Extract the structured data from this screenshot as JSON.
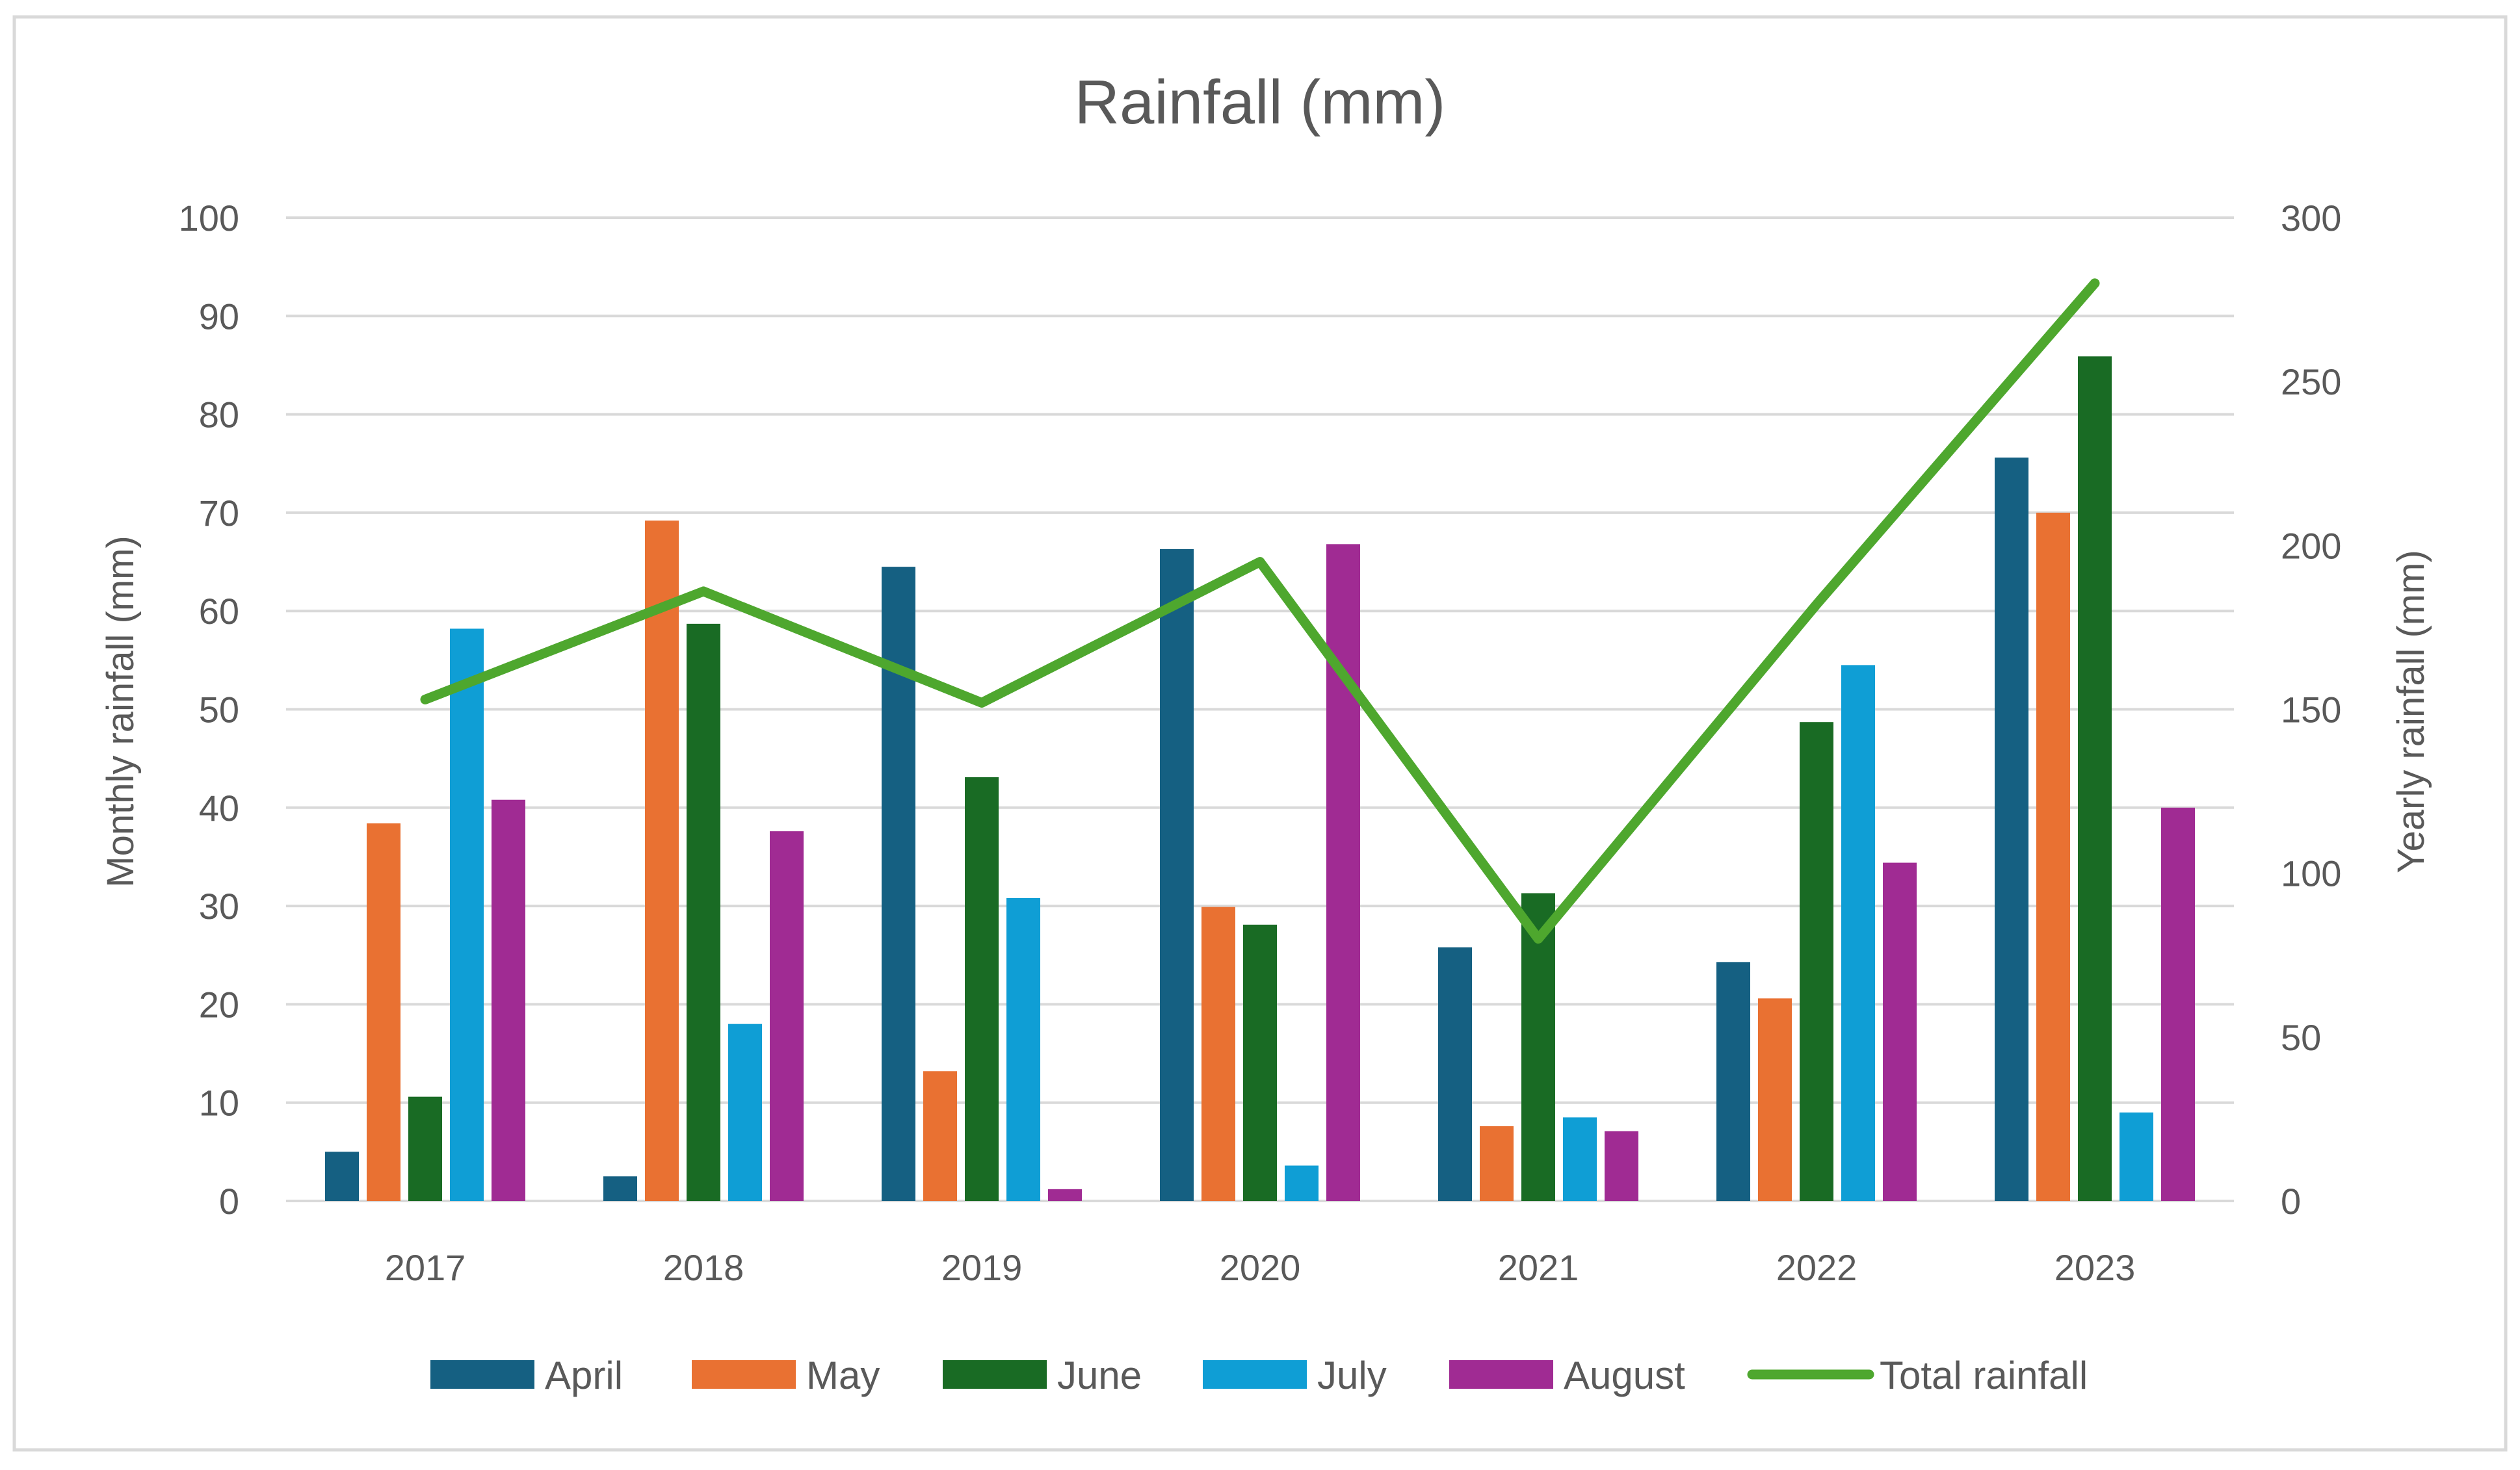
{
  "chart_data": {
    "type": "bar",
    "title": "Rainfall (mm)",
    "categories": [
      "2017",
      "2018",
      "2019",
      "2020",
      "2021",
      "2022",
      "2023"
    ],
    "ylabel": "Monthly rainfall (mm)",
    "y2label": "Yearly rainfall (mm)",
    "ylim": [
      0,
      100
    ],
    "y2lim": [
      0,
      300
    ],
    "yticks": [
      0,
      10,
      20,
      30,
      40,
      50,
      60,
      70,
      80,
      90,
      100
    ],
    "y2ticks": [
      0,
      50,
      100,
      150,
      200,
      250,
      300
    ],
    "tick_labels_left": [
      "0",
      "10",
      "20",
      "30",
      "40",
      "50",
      "60",
      "70",
      "80",
      "90",
      "100"
    ],
    "tick_labels_right": [
      "0",
      "50",
      "100",
      "150",
      "200",
      "250",
      "300"
    ],
    "grid": true,
    "legend_position": "bottom",
    "series": [
      {
        "name": "April",
        "type": "bar",
        "axis": "left",
        "color": "#156082",
        "values": [
          5,
          2.5,
          64.5,
          66.3,
          25.8,
          24.3,
          75.6
        ]
      },
      {
        "name": "May",
        "type": "bar",
        "axis": "left",
        "color": "#E97132",
        "values": [
          38.4,
          69.2,
          13.2,
          29.9,
          7.6,
          20.6,
          70
        ]
      },
      {
        "name": "June",
        "type": "bar",
        "axis": "left",
        "color": "#196B24",
        "values": [
          10.6,
          58.7,
          43.1,
          28.1,
          31.3,
          48.7,
          85.9
        ]
      },
      {
        "name": "July",
        "type": "bar",
        "axis": "left",
        "color": "#0F9ED5",
        "values": [
          58.2,
          18,
          30.8,
          3.6,
          8.5,
          54.5,
          9
        ]
      },
      {
        "name": "August",
        "type": "bar",
        "axis": "left",
        "color": "#A02B93",
        "values": [
          40.8,
          37.6,
          1.2,
          66.8,
          7.1,
          34.4,
          40
        ]
      },
      {
        "name": "Total rainfall",
        "type": "line",
        "axis": "right",
        "color": "#4EA72E",
        "values": [
          153,
          186,
          152,
          195,
          80,
          182,
          280
        ]
      }
    ]
  }
}
